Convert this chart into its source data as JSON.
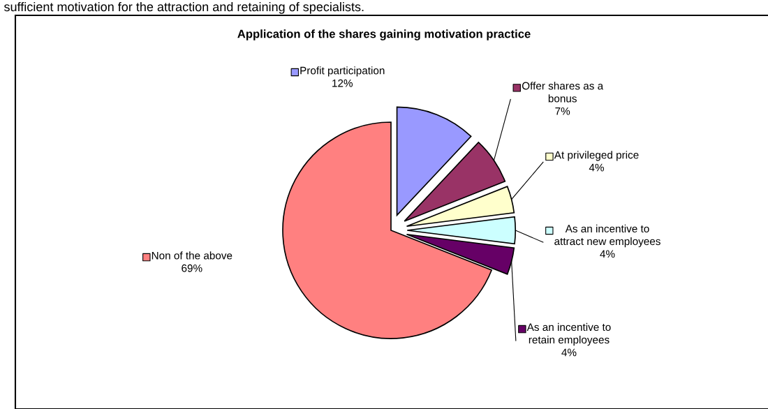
{
  "chart_data": {
    "type": "pie",
    "title": "Application of the shares gaining motivation practice",
    "categories": [
      "Profit participation",
      "Offer shares as a\nbonus",
      "At privileged price",
      "As an incentive to\nattract new employees",
      "As an incentive to\nretain employees",
      "Non of the above"
    ],
    "values": [
      12,
      7,
      4,
      4,
      4,
      69
    ],
    "colors": [
      "#9999ff",
      "#993366",
      "#ffffcc",
      "#ccffff",
      "#660066",
      "#ff8080"
    ],
    "value_labels": [
      "12%",
      "7%",
      "4%",
      "4%",
      "4%",
      "69%"
    ],
    "legend": "top right",
    "annotations": [
      "sufficient motivation for the attraction and retaining of specialists."
    ]
  }
}
